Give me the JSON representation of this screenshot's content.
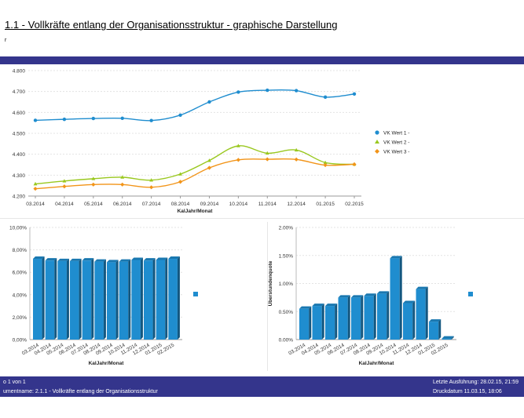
{
  "header": {
    "title": "1.1 - Vollkräfte entlang der Organisationsstruktur - graphische Darstellung",
    "mark": "r"
  },
  "colors": {
    "brand_bar": "#34358c",
    "series1": "#1f8dcf",
    "series2": "#9ac81f",
    "series3": "#f29418",
    "bar": "#1f8dcf"
  },
  "chart_data": [
    {
      "type": "line",
      "x": [
        "03.2014",
        "04.2014",
        "05.2014",
        "06.2014",
        "07.2014",
        "08.2014",
        "09.2014",
        "10.2014",
        "11.2014",
        "12.2014",
        "01.2015",
        "02.2015"
      ],
      "xlabel": "KalJahr/Monat",
      "ylim": [
        4200,
        4800
      ],
      "yticks": [
        "4.200",
        "4.300",
        "4.400",
        "4.500",
        "4.600",
        "4.700",
        "4.800"
      ],
      "legend_position": "right",
      "series": [
        {
          "name": "VK Wert 1 -",
          "values": [
            4562,
            4567,
            4571,
            4572,
            4561,
            4587,
            4650,
            4697,
            4706,
            4704,
            4673,
            4688
          ]
        },
        {
          "name": "VK Wert 2 -",
          "values": [
            4258,
            4272,
            4283,
            4290,
            4276,
            4305,
            4370,
            4440,
            4405,
            4420,
            4360,
            4352
          ]
        },
        {
          "name": "VK Wert 3 -",
          "values": [
            4235,
            4246,
            4255,
            4255,
            4242,
            4268,
            4335,
            4373,
            4376,
            4375,
            4348,
            4352
          ]
        }
      ]
    },
    {
      "type": "bar",
      "categories": [
        "03.2014",
        "04.2014",
        "05.2014",
        "06.2014",
        "07.2014",
        "08.2014",
        "09.2014",
        "10.2014",
        "11.2014",
        "12.2014",
        "01.2015",
        "02.2015"
      ],
      "values": [
        7.2,
        7.05,
        7.0,
        7.0,
        7.05,
        6.95,
        6.9,
        6.95,
        7.1,
        7.05,
        7.1,
        7.2
      ],
      "xlabel": "KalJahr/Monat",
      "ylim": [
        0,
        10
      ],
      "yticks": [
        "0,00%",
        "2,00%",
        "4,00%",
        "6,00%",
        "8,00%",
        "10,00%"
      ]
    },
    {
      "type": "bar",
      "categories": [
        "03.2014",
        "04.2014",
        "05.2014",
        "06.2014",
        "07.2014",
        "08.2014",
        "09.2014",
        "10.2014",
        "11.2014",
        "12.2014",
        "01.2015",
        "02.2015"
      ],
      "values": [
        0.55,
        0.6,
        0.6,
        0.75,
        0.75,
        0.78,
        0.82,
        1.45,
        0.65,
        0.9,
        0.32,
        0.02
      ],
      "xlabel": "KalJahr/Monat",
      "ylabel": "Überstundenquote",
      "ylim": [
        0,
        2
      ],
      "yticks": [
        "0.00%",
        "0.50%",
        "1.00%",
        "1.50%",
        "2.00%"
      ]
    }
  ],
  "footer": {
    "page": "o 1 von 1",
    "document": "umentname: 2.1.1 - Vollkräfte entlang der Organisationsstruktur",
    "last_run": "Letzte Ausführung: 28.02.15, 21:59",
    "print_date": "Druckdatum 11.03.15, 18:06"
  }
}
